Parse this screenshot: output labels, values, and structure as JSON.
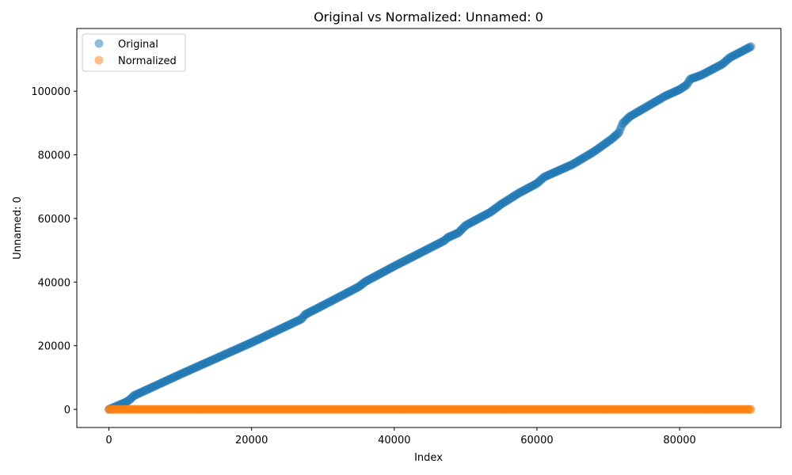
{
  "chart_data": {
    "type": "scatter",
    "title": "Original vs Normalized: Unnamed: 0",
    "xlabel": "Index",
    "ylabel": "Unnamed: 0",
    "xlim": [
      -4500,
      94200
    ],
    "ylim": [
      -5700,
      119700
    ],
    "x_ticks": [
      0,
      20000,
      40000,
      60000,
      80000
    ],
    "y_ticks": [
      0,
      20000,
      40000,
      60000,
      80000,
      100000
    ],
    "grid": false,
    "legend_position": "top-left",
    "series": [
      {
        "name": "Original",
        "color": "#1f77b4",
        "alpha": 0.5,
        "points": [
          [
            0,
            0
          ],
          [
            2500,
            2400
          ],
          [
            3000,
            3200
          ],
          [
            3500,
            4300
          ],
          [
            10000,
            11000
          ],
          [
            20000,
            21000
          ],
          [
            27000,
            28400
          ],
          [
            27500,
            29800
          ],
          [
            29000,
            31500
          ],
          [
            35000,
            38500
          ],
          [
            36000,
            40200
          ],
          [
            40000,
            45000
          ],
          [
            47000,
            53000
          ],
          [
            47500,
            54000
          ],
          [
            49000,
            55500
          ],
          [
            50000,
            57800
          ],
          [
            53500,
            62000
          ],
          [
            55000,
            64500
          ],
          [
            57500,
            68000
          ],
          [
            59000,
            69800
          ],
          [
            60000,
            71000
          ],
          [
            61000,
            73000
          ],
          [
            65000,
            77000
          ],
          [
            68000,
            81000
          ],
          [
            70500,
            85000
          ],
          [
            71500,
            87000
          ],
          [
            72000,
            89800
          ],
          [
            73000,
            92000
          ],
          [
            78000,
            98500
          ],
          [
            80000,
            100500
          ],
          [
            81000,
            102000
          ],
          [
            81500,
            103800
          ],
          [
            83000,
            105000
          ],
          [
            86000,
            108500
          ],
          [
            87000,
            110500
          ],
          [
            90000,
            114000
          ]
        ]
      },
      {
        "name": "Normalized",
        "color": "#ff7f0e",
        "alpha": 0.5,
        "points": [
          [
            0,
            0
          ],
          [
            10000,
            0
          ],
          [
            20000,
            0
          ],
          [
            30000,
            0
          ],
          [
            40000,
            0
          ],
          [
            50000,
            0
          ],
          [
            60000,
            0
          ],
          [
            70000,
            0
          ],
          [
            80000,
            0
          ],
          [
            90000,
            0
          ]
        ]
      }
    ]
  }
}
